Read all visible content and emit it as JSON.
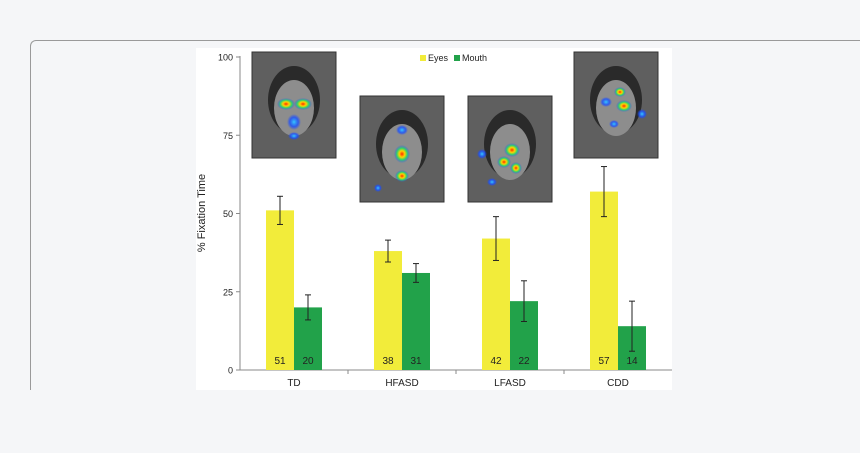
{
  "chart_data": {
    "type": "bar",
    "ylabel": "% Fixation Time",
    "categories": [
      "TD",
      "HFASD",
      "LFASD",
      "CDD"
    ],
    "ylim": [
      0,
      100
    ],
    "yticks": [
      0,
      25,
      50,
      75,
      100
    ],
    "legend_position": "top-center",
    "grid": false,
    "series": [
      {
        "name": "Eyes",
        "color": "#f2ec3a",
        "values": [
          51,
          38,
          42,
          57
        ],
        "labels": [
          "51",
          "38",
          "42",
          "57"
        ],
        "error": [
          4.5,
          3.5,
          7,
          8
        ]
      },
      {
        "name": "Mouth",
        "color": "#22a24a",
        "values": [
          20,
          31,
          22,
          14
        ],
        "labels": [
          "20",
          "31",
          "22",
          "14"
        ],
        "error": [
          4,
          3,
          6.5,
          8
        ]
      }
    ]
  }
}
